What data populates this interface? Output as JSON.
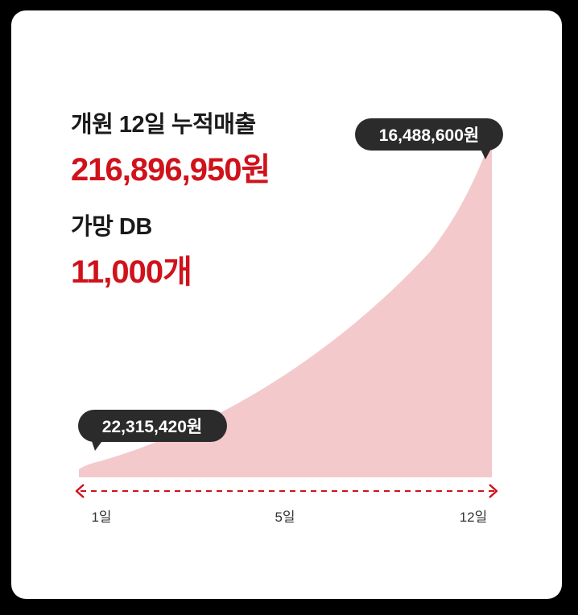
{
  "summary": {
    "revenue_label": "개원 12일 누적매출",
    "revenue_value": "216,896,950원",
    "db_label": "가망 DB",
    "db_value": "11,000개"
  },
  "chart_data": {
    "type": "area",
    "x_ticks": [
      "1일",
      "5일",
      "12일"
    ],
    "annotations": [
      {
        "at": "1일",
        "text": "22,315,420원"
      },
      {
        "at": "12일",
        "text": "16,488,600원"
      }
    ],
    "colors": {
      "area": "#f4c9cb",
      "axis": "#d0121b",
      "bubble": "#2b2b2b"
    }
  }
}
